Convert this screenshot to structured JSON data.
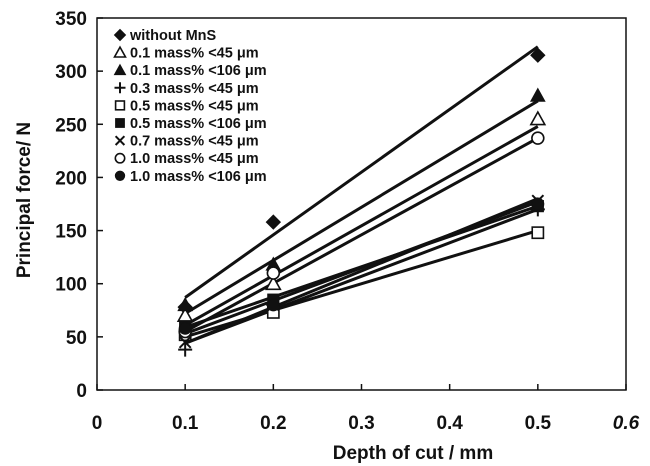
{
  "chart_data": {
    "type": "scatter",
    "xlabel": "Depth of cut / mm",
    "ylabel": "Principal force/ N",
    "xlim": [
      0,
      0.6
    ],
    "ylim": [
      0,
      350
    ],
    "xticks": [
      0,
      0.1,
      0.2,
      0.3,
      0.4,
      0.5,
      0.6
    ],
    "xtick_labels": [
      "0",
      "0.1",
      "0.2",
      "0.3",
      "0.4",
      "0.5",
      "0.6"
    ],
    "yticks": [
      0,
      50,
      100,
      150,
      200,
      250,
      300,
      350
    ],
    "ytick_labels": [
      "0",
      "50",
      "100",
      "150",
      "200",
      "250",
      "300",
      "350"
    ],
    "grid": false,
    "legend_position": "top-left",
    "series": [
      {
        "name": "without MnS",
        "marker": "diamond-filled",
        "x": [
          0.1,
          0.2,
          0.5
        ],
        "y": [
          78,
          158,
          315
        ],
        "fit_y": [
          87,
          149,
          323
        ]
      },
      {
        "name": "0.1 mass% <45 μm",
        "marker": "triangle-open",
        "x": [
          0.1,
          0.2,
          0.5
        ],
        "y": [
          70,
          100,
          255
        ],
        "fit_y": [
          61,
          111,
          248
        ]
      },
      {
        "name": "0.1 mass% <106 μm",
        "marker": "triangle-filled",
        "x": [
          0.1,
          0.2,
          0.5
        ],
        "y": [
          80,
          118,
          277
        ],
        "fit_y": [
          72,
          123,
          272
        ]
      },
      {
        "name": "0.3 mass% <45 μm",
        "marker": "plus",
        "x": [
          0.1,
          0.2,
          0.5
        ],
        "y": [
          38,
          80,
          170
        ],
        "fit_y": [
          44,
          77,
          170
        ]
      },
      {
        "name": "0.5 mass% <45 μm",
        "marker": "square-open",
        "x": [
          0.1,
          0.2,
          0.5
        ],
        "y": [
          52,
          73,
          148
        ],
        "fit_y": [
          50,
          73,
          150
        ]
      },
      {
        "name": "0.5 mass% <106 μm",
        "marker": "square-filled",
        "x": [
          0.1,
          0.2,
          0.5
        ],
        "y": [
          60,
          85,
          173
        ],
        "fit_y": [
          59,
          85,
          173
        ]
      },
      {
        "name": "0.7 mass% <45 μm",
        "marker": "x",
        "x": [
          0.1,
          0.2,
          0.5
        ],
        "y": [
          45,
          80,
          178
        ],
        "fit_y": [
          44,
          79,
          180
        ]
      },
      {
        "name": "1.0 mass% <45 μm",
        "marker": "circle-open",
        "x": [
          0.1,
          0.2,
          0.5
        ],
        "y": [
          55,
          110,
          237
        ],
        "fit_y": [
          55,
          103,
          237
        ]
      },
      {
        "name": "1.0 mass% <106 μm",
        "marker": "circle-filled",
        "x": [
          0.1,
          0.2,
          0.5
        ],
        "y": [
          58,
          80,
          175
        ],
        "fit_y": [
          53,
          85,
          177
        ]
      }
    ]
  }
}
